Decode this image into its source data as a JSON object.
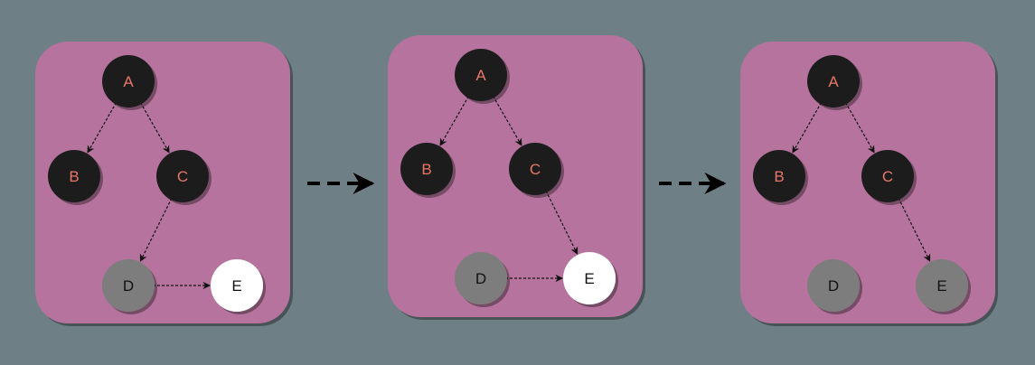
{
  "colors": {
    "background": "#6f7f86",
    "panel": "#b5739d",
    "node_dark": "#1d1d1d",
    "node_gray": "#7d7d7d",
    "node_white": "#ffffff",
    "label_on_dark": "#e8776a",
    "label_on_light": "#111111",
    "edge": "#111111"
  },
  "panels": [
    {
      "id": "panel-1",
      "nodes": [
        {
          "id": "A",
          "label": "A",
          "state": "dark"
        },
        {
          "id": "B",
          "label": "B",
          "state": "dark"
        },
        {
          "id": "C",
          "label": "C",
          "state": "dark"
        },
        {
          "id": "D",
          "label": "D",
          "state": "gray"
        },
        {
          "id": "E",
          "label": "E",
          "state": "white"
        }
      ],
      "edges": [
        {
          "from": "A",
          "to": "B"
        },
        {
          "from": "A",
          "to": "C"
        },
        {
          "from": "C",
          "to": "D"
        },
        {
          "from": "D",
          "to": "E"
        }
      ]
    },
    {
      "id": "panel-2",
      "nodes": [
        {
          "id": "A",
          "label": "A",
          "state": "dark"
        },
        {
          "id": "B",
          "label": "B",
          "state": "dark"
        },
        {
          "id": "C",
          "label": "C",
          "state": "dark"
        },
        {
          "id": "D",
          "label": "D",
          "state": "gray"
        },
        {
          "id": "E",
          "label": "E",
          "state": "white"
        }
      ],
      "edges": [
        {
          "from": "A",
          "to": "B"
        },
        {
          "from": "A",
          "to": "C"
        },
        {
          "from": "C",
          "to": "E"
        },
        {
          "from": "D",
          "to": "E"
        }
      ]
    },
    {
      "id": "panel-3",
      "nodes": [
        {
          "id": "A",
          "label": "A",
          "state": "dark"
        },
        {
          "id": "B",
          "label": "B",
          "state": "dark"
        },
        {
          "id": "C",
          "label": "C",
          "state": "dark"
        },
        {
          "id": "D",
          "label": "D",
          "state": "gray"
        },
        {
          "id": "E",
          "label": "E",
          "state": "gray"
        }
      ],
      "edges": [
        {
          "from": "A",
          "to": "B"
        },
        {
          "from": "A",
          "to": "C"
        },
        {
          "from": "C",
          "to": "E"
        }
      ]
    }
  ],
  "transitions": [
    {
      "from": "panel-1",
      "to": "panel-2"
    },
    {
      "from": "panel-2",
      "to": "panel-3"
    }
  ]
}
